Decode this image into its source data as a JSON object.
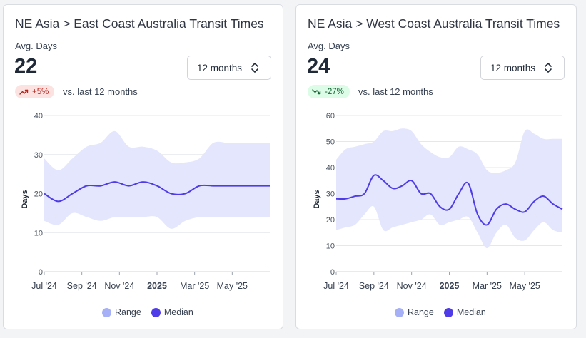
{
  "colors": {
    "range": "#e3e6fd",
    "median": "#4f3ce8",
    "range_legend": "#a5b0f7",
    "grid": "#e5e7eb"
  },
  "panels": [
    {
      "title": "NE Asia > East Coast Australia Transit Times",
      "avg_label": "Avg. Days",
      "avg_value": "22",
      "change": {
        "text": "+5%",
        "direction": "up",
        "icon": "trend-up-icon"
      },
      "compare_text": "vs. last 12 months",
      "period": {
        "selected": "12 months",
        "icon": "chevron-updown-icon"
      },
      "legend": [
        "Range",
        "Median"
      ]
    },
    {
      "title": "NE Asia > West Coast Australia Transit Times",
      "avg_label": "Avg. Days",
      "avg_value": "24",
      "change": {
        "text": "-27%",
        "direction": "down",
        "icon": "trend-down-icon"
      },
      "compare_text": "vs. last 12 months",
      "period": {
        "selected": "12 months",
        "icon": "chevron-updown-icon"
      },
      "legend": [
        "Range",
        "Median"
      ]
    }
  ],
  "chart_data": [
    {
      "type": "area",
      "ylabel": "Days",
      "ylim": [
        0,
        40
      ],
      "yticks": [
        0,
        10,
        20,
        30,
        40
      ],
      "x_ticks": [
        {
          "label": "Jul '24",
          "x": 0,
          "bold": false
        },
        {
          "label": "Sep '24",
          "x": 2,
          "bold": false
        },
        {
          "label": "Nov '24",
          "x": 4,
          "bold": false
        },
        {
          "label": "2025",
          "x": 6,
          "bold": true
        },
        {
          "label": "Mar '25",
          "x": 8,
          "bold": false
        },
        {
          "label": "May '25",
          "x": 10,
          "bold": false
        }
      ],
      "x": [
        0,
        0.75,
        1.5,
        2.25,
        3,
        3.75,
        4.5,
        5.25,
        6,
        6.75,
        7.5,
        8.25,
        9,
        9.75,
        10.5,
        11.25,
        12
      ],
      "series": [
        {
          "name": "Median",
          "values": [
            20,
            18,
            20,
            22,
            22,
            23,
            22,
            23,
            22,
            20,
            20,
            22,
            22,
            22,
            22,
            22,
            22
          ]
        },
        {
          "name": "Range",
          "low": [
            13,
            12,
            15,
            14,
            13,
            14,
            14,
            14,
            14,
            11,
            13,
            14,
            14,
            14,
            14,
            14,
            14
          ],
          "high": [
            29,
            26,
            29,
            32,
            33,
            36,
            32,
            32,
            31,
            28,
            28,
            29,
            33,
            33,
            33,
            33,
            33
          ]
        }
      ],
      "grid": true,
      "legend_position": "bottom"
    },
    {
      "type": "area",
      "ylabel": "Days",
      "ylim": [
        0,
        60
      ],
      "yticks": [
        0,
        10,
        20,
        30,
        40,
        50,
        60
      ],
      "x_ticks": [
        {
          "label": "Jul '24",
          "x": 0,
          "bold": false
        },
        {
          "label": "Sep '24",
          "x": 2,
          "bold": false
        },
        {
          "label": "Nov '24",
          "x": 4,
          "bold": false
        },
        {
          "label": "2025",
          "x": 6,
          "bold": true
        },
        {
          "label": "Mar '25",
          "x": 8,
          "bold": false
        },
        {
          "label": "May '25",
          "x": 10,
          "bold": false
        }
      ],
      "x": [
        0,
        0.5,
        1,
        1.5,
        2,
        2.5,
        3,
        3.5,
        4,
        4.5,
        5,
        5.5,
        6,
        6.5,
        7,
        7.5,
        8,
        8.5,
        9,
        9.5,
        10,
        10.5,
        11,
        11.5,
        12
      ],
      "series": [
        {
          "name": "Median",
          "values": [
            28,
            28,
            29,
            30,
            37,
            35,
            32,
            33,
            35,
            30,
            30,
            25,
            24,
            30,
            34,
            22,
            18,
            24,
            26,
            24,
            23,
            27,
            29,
            26,
            24
          ]
        },
        {
          "name": "Range",
          "low": [
            16,
            17,
            18,
            22,
            25,
            16,
            17,
            18,
            19,
            20,
            22,
            18,
            19,
            20,
            21,
            15,
            9,
            15,
            18,
            13,
            12,
            16,
            19,
            16,
            15
          ],
          "high": [
            43,
            47,
            48,
            49,
            50,
            54,
            54,
            55,
            54,
            49,
            46,
            44,
            44,
            48,
            47,
            45,
            39,
            38,
            39,
            42,
            54,
            53,
            51,
            51,
            51
          ]
        }
      ],
      "grid": true,
      "legend_position": "bottom"
    }
  ]
}
